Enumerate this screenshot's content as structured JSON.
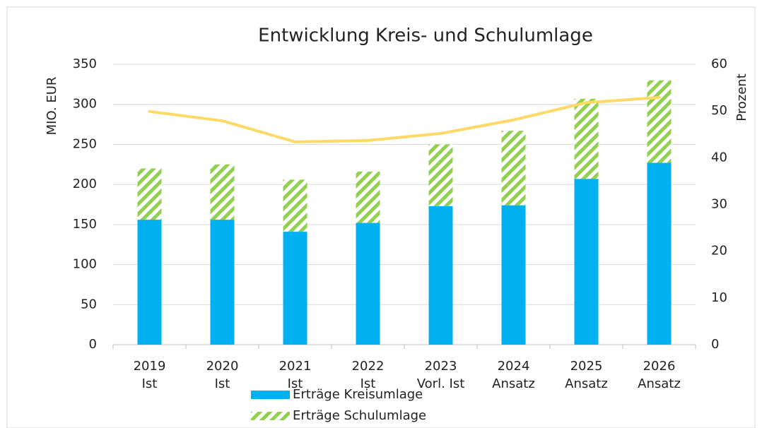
{
  "chart_data": {
    "type": "bar",
    "stacked": true,
    "title": "Entwicklung Kreis- und Schulumlage",
    "ylabel": "MIO. EUR",
    "y2label": "Prozent",
    "categories": [
      [
        "2019",
        "Ist"
      ],
      [
        "2020",
        "Ist"
      ],
      [
        "2021",
        "Ist"
      ],
      [
        "2022",
        "Ist"
      ],
      [
        "2023",
        "Vorl. Ist"
      ],
      [
        "2024",
        "Ansatz"
      ],
      [
        "2025",
        "Ansatz"
      ],
      [
        "2026",
        "Ansatz"
      ]
    ],
    "series": [
      {
        "name": "Erträge Kreisumlage",
        "type": "bar",
        "color": "#00b0f0",
        "values": [
          156,
          156,
          141,
          152,
          173,
          174,
          207,
          227
        ]
      },
      {
        "name": "Erträge Schulumlage",
        "type": "bar",
        "color": "#92d050",
        "pattern": "hatch",
        "values": [
          64,
          69,
          65,
          64,
          77,
          93,
          100,
          103
        ]
      },
      {
        "type": "line",
        "axis": "y2",
        "color": "#ffd966",
        "values": [
          49.9,
          47.9,
          43.4,
          43.7,
          45.2,
          48.1,
          51.8,
          52.9
        ]
      }
    ],
    "ylim": [
      0,
      350
    ],
    "yticks": [
      0,
      50,
      100,
      150,
      200,
      250,
      300,
      350
    ],
    "y2lim": [
      0,
      60
    ],
    "y2ticks": [
      0,
      10,
      20,
      30,
      40,
      50,
      60
    ],
    "grid": true,
    "legend": "bottom"
  }
}
